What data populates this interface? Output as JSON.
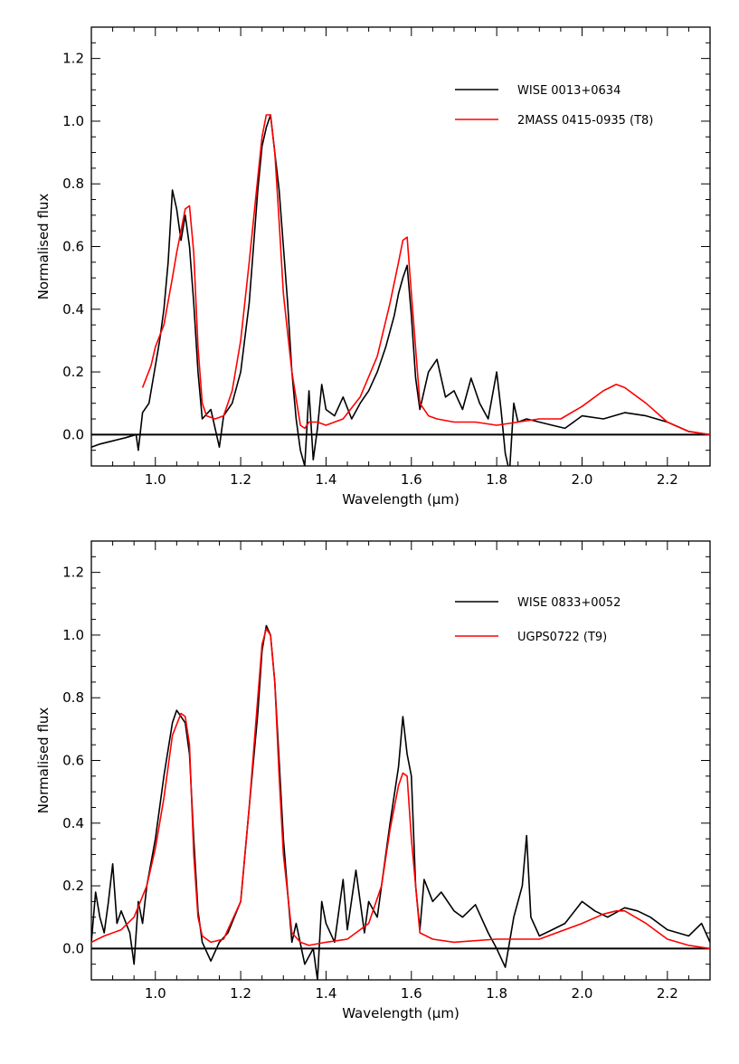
{
  "chart_data": [
    {
      "type": "line",
      "xlabel": "Wavelength (μm)",
      "ylabel": "Normalised flux",
      "xlim": [
        0.85,
        2.3
      ],
      "ylim": [
        -0.1,
        1.3
      ],
      "xticks": [
        1.0,
        1.2,
        1.4,
        1.6,
        1.8,
        2.0,
        2.2
      ],
      "xtick_labels": [
        "1.0",
        "1.2",
        "1.4",
        "1.6",
        "1.8",
        "2.0",
        "2.2"
      ],
      "yticks": [
        0.0,
        0.2,
        0.4,
        0.6,
        0.8,
        1.0,
        1.2
      ],
      "ytick_labels": [
        "0.0",
        "0.2",
        "0.4",
        "0.6",
        "0.8",
        "1.0",
        "1.2"
      ],
      "zero_line": 0.0,
      "legend_position": "top-right",
      "series": [
        {
          "name": "WISE 0013+0634",
          "color": "#000000",
          "x": [
            0.85,
            0.87,
            0.9,
            0.93,
            0.955,
            0.96,
            0.97,
            0.985,
            1.0,
            1.01,
            1.02,
            1.03,
            1.04,
            1.05,
            1.06,
            1.07,
            1.08,
            1.09,
            1.1,
            1.11,
            1.13,
            1.15,
            1.16,
            1.18,
            1.2,
            1.22,
            1.24,
            1.25,
            1.26,
            1.27,
            1.28,
            1.29,
            1.3,
            1.31,
            1.32,
            1.33,
            1.34,
            1.35,
            1.36,
            1.37,
            1.38,
            1.39,
            1.4,
            1.42,
            1.44,
            1.46,
            1.48,
            1.5,
            1.52,
            1.54,
            1.56,
            1.57,
            1.58,
            1.59,
            1.6,
            1.61,
            1.62,
            1.63,
            1.64,
            1.66,
            1.68,
            1.7,
            1.72,
            1.74,
            1.76,
            1.78,
            1.8,
            1.81,
            1.82,
            1.83,
            1.84,
            1.85,
            1.87,
            1.9,
            1.93,
            1.96,
            2.0,
            2.05,
            2.1,
            2.15,
            2.2,
            2.25,
            2.3
          ],
          "y": [
            -0.04,
            -0.03,
            -0.02,
            -0.01,
            0.0,
            -0.05,
            0.07,
            0.1,
            0.22,
            0.3,
            0.4,
            0.55,
            0.78,
            0.72,
            0.62,
            0.7,
            0.6,
            0.42,
            0.2,
            0.05,
            0.08,
            -0.04,
            0.06,
            0.1,
            0.2,
            0.42,
            0.78,
            0.92,
            0.98,
            1.02,
            0.9,
            0.78,
            0.6,
            0.42,
            0.2,
            0.05,
            -0.05,
            -0.1,
            0.14,
            -0.08,
            0.02,
            0.16,
            0.08,
            0.06,
            0.12,
            0.05,
            0.1,
            0.14,
            0.2,
            0.28,
            0.38,
            0.45,
            0.5,
            0.54,
            0.38,
            0.18,
            0.08,
            0.14,
            0.2,
            0.24,
            0.12,
            0.14,
            0.08,
            0.18,
            0.1,
            0.05,
            0.2,
            0.08,
            -0.06,
            -0.12,
            0.1,
            0.04,
            0.05,
            0.04,
            0.03,
            0.02,
            0.06,
            0.05,
            0.07,
            0.06,
            0.04,
            0.01,
            0.0
          ]
        },
        {
          "name": "2MASS 0415-0935 (T8)",
          "color": "#ff0000",
          "x": [
            0.97,
            0.99,
            1.0,
            1.02,
            1.04,
            1.05,
            1.06,
            1.07,
            1.08,
            1.09,
            1.1,
            1.11,
            1.12,
            1.14,
            1.16,
            1.18,
            1.2,
            1.22,
            1.24,
            1.25,
            1.26,
            1.27,
            1.28,
            1.29,
            1.3,
            1.32,
            1.34,
            1.35,
            1.36,
            1.38,
            1.4,
            1.44,
            1.48,
            1.52,
            1.55,
            1.57,
            1.58,
            1.59,
            1.6,
            1.62,
            1.64,
            1.66,
            1.7,
            1.75,
            1.8,
            1.85,
            1.9,
            1.95,
            2.0,
            2.05,
            2.08,
            2.1,
            2.15,
            2.2,
            2.25,
            2.3
          ],
          "y": [
            0.15,
            0.22,
            0.28,
            0.35,
            0.5,
            0.58,
            0.65,
            0.72,
            0.73,
            0.58,
            0.28,
            0.1,
            0.06,
            0.05,
            0.06,
            0.14,
            0.3,
            0.55,
            0.82,
            0.95,
            1.02,
            1.02,
            0.9,
            0.68,
            0.45,
            0.2,
            0.03,
            0.02,
            0.04,
            0.04,
            0.03,
            0.05,
            0.12,
            0.25,
            0.42,
            0.55,
            0.62,
            0.63,
            0.45,
            0.1,
            0.06,
            0.05,
            0.04,
            0.04,
            0.03,
            0.04,
            0.05,
            0.05,
            0.09,
            0.14,
            0.16,
            0.15,
            0.1,
            0.04,
            0.01,
            0.0
          ]
        }
      ]
    },
    {
      "type": "line",
      "xlabel": "Wavelength (μm)",
      "ylabel": "Normalised flux",
      "xlim": [
        0.85,
        2.3
      ],
      "ylim": [
        -0.1,
        1.3
      ],
      "xticks": [
        1.0,
        1.2,
        1.4,
        1.6,
        1.8,
        2.0,
        2.2
      ],
      "xtick_labels": [
        "1.0",
        "1.2",
        "1.4",
        "1.6",
        "1.8",
        "2.0",
        "2.2"
      ],
      "yticks": [
        0.0,
        0.2,
        0.4,
        0.6,
        0.8,
        1.0,
        1.2
      ],
      "ytick_labels": [
        "0.0",
        "0.2",
        "0.4",
        "0.6",
        "0.8",
        "1.0",
        "1.2"
      ],
      "zero_line": 0.0,
      "legend_position": "top-right",
      "series": [
        {
          "name": "WISE 0833+0052",
          "color": "#000000",
          "x": [
            0.85,
            0.86,
            0.87,
            0.88,
            0.89,
            0.9,
            0.91,
            0.92,
            0.94,
            0.95,
            0.96,
            0.97,
            0.98,
            1.0,
            1.02,
            1.04,
            1.05,
            1.06,
            1.07,
            1.08,
            1.09,
            1.1,
            1.11,
            1.13,
            1.15,
            1.17,
            1.2,
            1.22,
            1.24,
            1.25,
            1.26,
            1.27,
            1.28,
            1.29,
            1.3,
            1.31,
            1.32,
            1.33,
            1.35,
            1.37,
            1.38,
            1.39,
            1.4,
            1.42,
            1.44,
            1.45,
            1.47,
            1.49,
            1.5,
            1.52,
            1.54,
            1.55,
            1.57,
            1.58,
            1.59,
            1.6,
            1.61,
            1.62,
            1.63,
            1.65,
            1.67,
            1.7,
            1.72,
            1.75,
            1.78,
            1.8,
            1.82,
            1.84,
            1.86,
            1.87,
            1.88,
            1.9,
            1.93,
            1.96,
            2.0,
            2.03,
            2.06,
            2.1,
            2.13,
            2.16,
            2.2,
            2.25,
            2.28,
            2.3
          ],
          "y": [
            0.02,
            0.18,
            0.1,
            0.05,
            0.15,
            0.27,
            0.08,
            0.12,
            0.05,
            -0.05,
            0.15,
            0.08,
            0.2,
            0.35,
            0.55,
            0.72,
            0.76,
            0.74,
            0.72,
            0.62,
            0.35,
            0.12,
            0.02,
            -0.04,
            0.02,
            0.05,
            0.15,
            0.45,
            0.75,
            0.95,
            1.03,
            1.0,
            0.85,
            0.6,
            0.35,
            0.18,
            0.02,
            0.08,
            -0.05,
            0.0,
            -0.1,
            0.15,
            0.08,
            0.02,
            0.22,
            0.06,
            0.25,
            0.05,
            0.15,
            0.1,
            0.3,
            0.4,
            0.58,
            0.74,
            0.62,
            0.55,
            0.2,
            0.06,
            0.22,
            0.15,
            0.18,
            0.12,
            0.1,
            0.14,
            0.05,
            0.0,
            -0.06,
            0.1,
            0.2,
            0.36,
            0.1,
            0.04,
            0.06,
            0.08,
            0.15,
            0.12,
            0.1,
            0.13,
            0.12,
            0.1,
            0.06,
            0.04,
            0.08,
            0.02
          ]
        },
        {
          "name": "UGPS0722 (T9)",
          "color": "#ff0000",
          "x": [
            0.85,
            0.88,
            0.92,
            0.95,
            0.98,
            1.0,
            1.02,
            1.04,
            1.06,
            1.07,
            1.08,
            1.09,
            1.1,
            1.11,
            1.13,
            1.16,
            1.2,
            1.22,
            1.24,
            1.25,
            1.26,
            1.27,
            1.28,
            1.29,
            1.3,
            1.32,
            1.34,
            1.36,
            1.4,
            1.45,
            1.5,
            1.53,
            1.55,
            1.57,
            1.58,
            1.59,
            1.6,
            1.62,
            1.65,
            1.7,
            1.8,
            1.9,
            2.0,
            2.05,
            2.08,
            2.1,
            2.15,
            2.2,
            2.25,
            2.3
          ],
          "y": [
            0.02,
            0.04,
            0.06,
            0.1,
            0.2,
            0.32,
            0.48,
            0.68,
            0.75,
            0.74,
            0.65,
            0.3,
            0.1,
            0.04,
            0.02,
            0.03,
            0.15,
            0.45,
            0.8,
            0.97,
            1.02,
            1.0,
            0.85,
            0.55,
            0.3,
            0.05,
            0.02,
            0.01,
            0.02,
            0.03,
            0.08,
            0.2,
            0.38,
            0.52,
            0.56,
            0.55,
            0.35,
            0.05,
            0.03,
            0.02,
            0.03,
            0.03,
            0.08,
            0.11,
            0.12,
            0.12,
            0.08,
            0.03,
            0.01,
            0.0
          ]
        }
      ]
    }
  ]
}
